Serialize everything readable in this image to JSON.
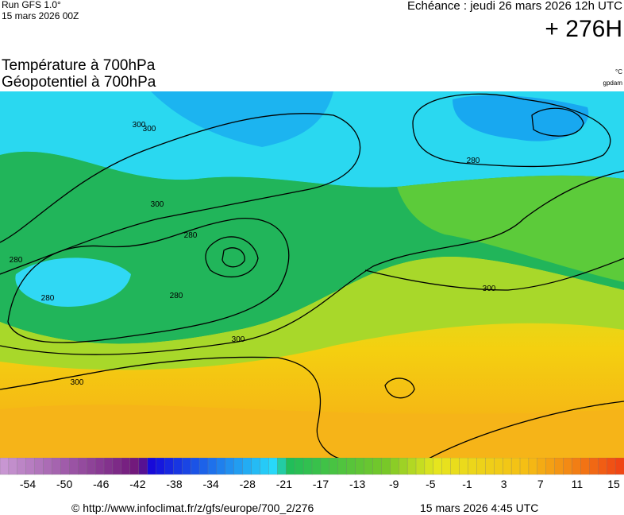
{
  "header": {
    "run": "Run GFS 1.0°",
    "run_date": "15 mars 2026 00Z",
    "valid": "Echéance : jeudi 26 mars 2026 12h UTC",
    "lead": "+ 276H"
  },
  "titles": {
    "temperature": "Température à 700hPa",
    "geopotential": "Géopotentiel à 700hPa",
    "temperature_unit": "°C",
    "geopotential_unit": "gpdam"
  },
  "contour_labels": [
    "300",
    "300",
    "280",
    "280",
    "280",
    "280",
    "300",
    "300",
    "300",
    "280",
    "300"
  ],
  "colorbar": {
    "labels": [
      -54,
      -50,
      -46,
      -42,
      -38,
      -34,
      -28,
      -21,
      -17,
      -13,
      -9,
      -5,
      -1,
      3,
      7,
      11,
      15
    ]
  },
  "footer": {
    "url": "© http://www.infoclimat.fr/z/gfs/europe/700_2/276",
    "generated": "15 mars 2026  4:45 UTC"
  }
}
